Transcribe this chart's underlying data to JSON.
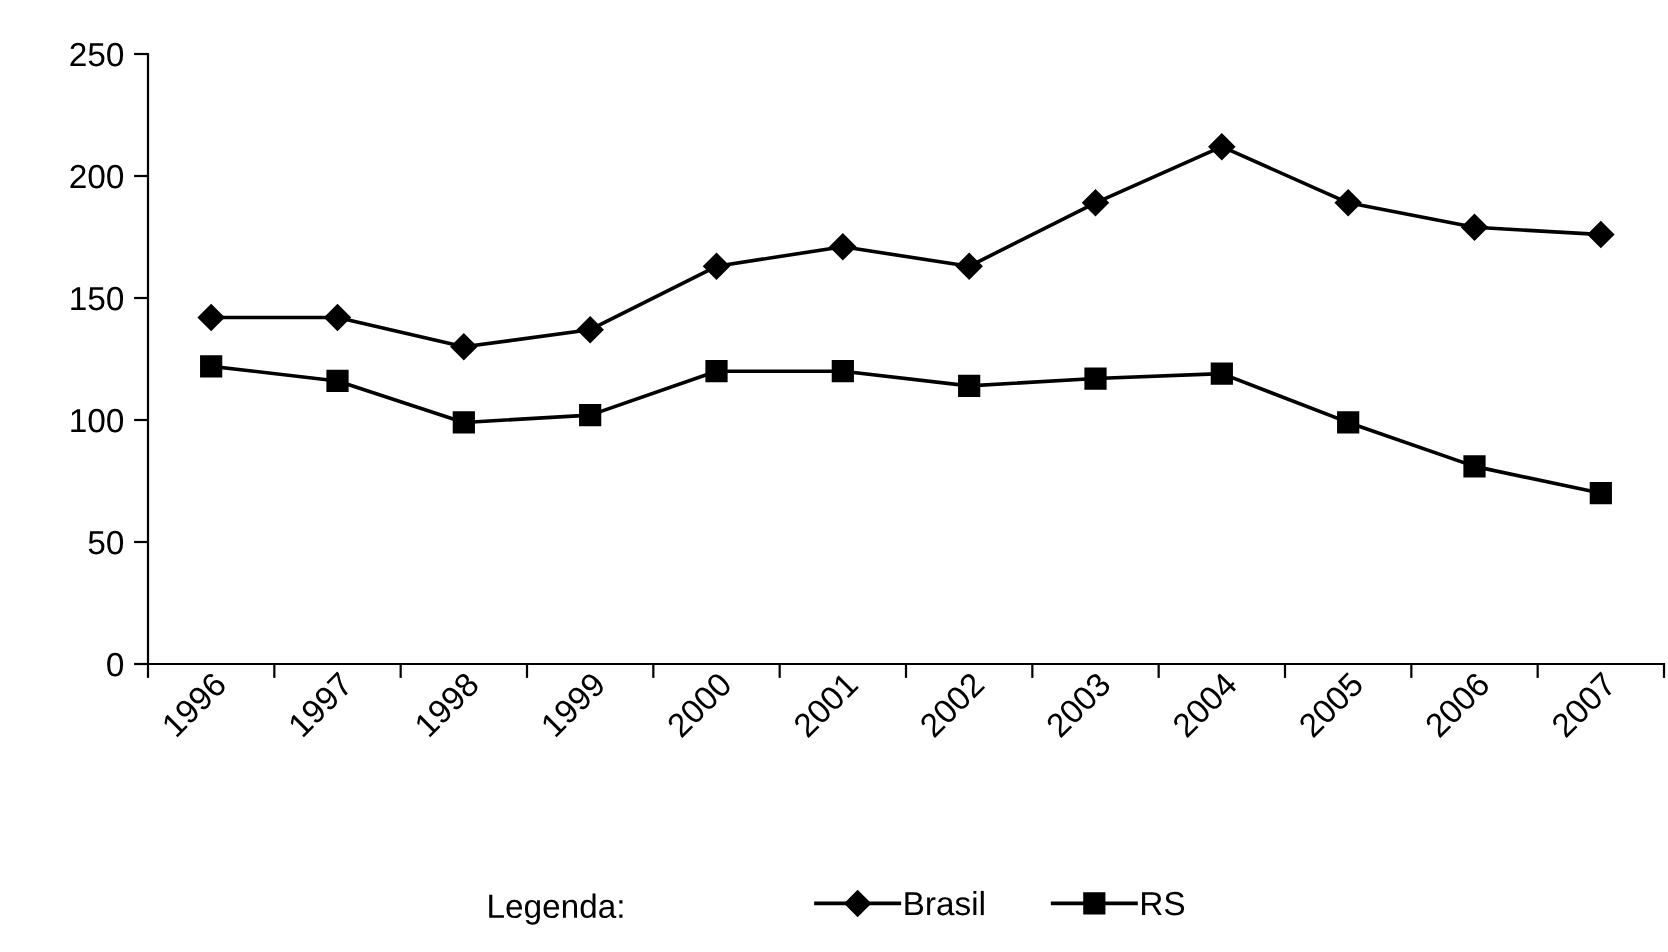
{
  "chart_data": {
    "type": "line",
    "categories": [
      "1996",
      "1997",
      "1998",
      "1999",
      "2000",
      "2001",
      "2002",
      "2003",
      "2004",
      "2005",
      "2006",
      "2007"
    ],
    "series": [
      {
        "name": "Brasil",
        "color": "#000000",
        "marker": "diamond",
        "values": [
          142,
          142,
          130,
          137,
          163,
          171,
          163,
          189,
          212,
          189,
          179,
          176
        ]
      },
      {
        "name": "RS",
        "color": "#000000",
        "marker": "square",
        "values": [
          122,
          116,
          99,
          102,
          120,
          120,
          114,
          117,
          119,
          99,
          81,
          70
        ]
      }
    ],
    "ylim": [
      0,
      250
    ],
    "yticks": [
      0,
      50,
      100,
      150,
      200,
      250
    ],
    "legend": "bottom",
    "legend_title": "Legenda:",
    "grid": false,
    "line_style": "solid"
  }
}
